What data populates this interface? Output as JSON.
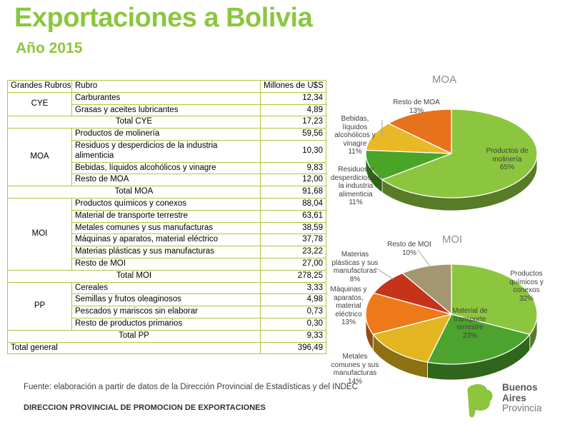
{
  "header": {
    "title": "Exportaciones a Bolivia",
    "subtitle": "Año 2015"
  },
  "colors": {
    "accent_green": "#8cc63e",
    "table_border": "#b2c53c",
    "chart_title_gray": "#8c8c8c"
  },
  "table": {
    "headers": [
      "Grandes Rubros",
      "Rubro",
      "Millones de U$S"
    ],
    "groups": [
      {
        "name": "CYE",
        "items": [
          [
            "Carburantes",
            "12,34"
          ],
          [
            "Grasas y aceites lubricantes",
            "4,89"
          ]
        ],
        "total_label": "Total CYE",
        "total": "17,23"
      },
      {
        "name": "MOA",
        "items": [
          [
            "Productos de molinería",
            "59,56"
          ],
          [
            "Residuos y desperdicios de la industria alimenticia",
            "10,30"
          ],
          [
            "Bebidas, líquidos alcohólicos y vinagre",
            "9,83"
          ],
          [
            "Resto de MOA",
            "12,00"
          ]
        ],
        "total_label": "Total MOA",
        "total": "91,68"
      },
      {
        "name": "MOI",
        "items": [
          [
            "Productos químicos y conexos",
            "88,04"
          ],
          [
            "Material de transporte terrestre",
            "63,61"
          ],
          [
            "Metales comunes y sus manufacturas",
            "38,59"
          ],
          [
            "Máquinas y aparatos, material eléctrico",
            "37,78"
          ],
          [
            "Materias plásticas y sus manufacturas",
            "23,22"
          ],
          [
            "Resto de MOI",
            "27,00"
          ]
        ],
        "total_label": "Total MOI",
        "total": "278,25"
      },
      {
        "name": "PP",
        "items": [
          [
            "Cereales",
            "3,33"
          ],
          [
            "Semillas y frutos oleaginosos",
            "4,98"
          ],
          [
            "Pescados y mariscos sin elaborar",
            "0,73"
          ],
          [
            "Resto de productos primarios",
            "0,30"
          ]
        ],
        "total_label": "Total PP",
        "total": "9,33"
      }
    ],
    "grand_total_label": "Total general",
    "grand_total": "396,49"
  },
  "chart_data": [
    {
      "type": "pie",
      "title": "MOA",
      "unit": "Millones de U$S",
      "slices": [
        {
          "label": "Productos de molinería",
          "label_lines": [
            "Productos de",
            "molinería"
          ],
          "value": 59.56,
          "pct": "65%",
          "color": "#8cc63e"
        },
        {
          "label": "Residuos y desperdicios de la industria alimenticia",
          "label_lines": [
            "Residuos y",
            "desperdicios de",
            "la industria",
            "alimenticia"
          ],
          "value": 10.3,
          "pct": "11%",
          "color": "#4aa427"
        },
        {
          "label": "Bebidas, líquidos alcohólicos y vinagre",
          "label_lines": [
            "Bebidas,",
            "líquidos",
            "alcohólicos y",
            "vinagre"
          ],
          "value": 9.83,
          "pct": "11%",
          "color": "#e9b925"
        },
        {
          "label": "Resto de MOA",
          "label_lines": [
            "Resto de MOA"
          ],
          "value": 12.0,
          "pct": "13%",
          "color": "#e8711c"
        }
      ]
    },
    {
      "type": "pie",
      "title": "MOI",
      "unit": "Millones de U$S",
      "slices": [
        {
          "label": "Productos químicos y conexos",
          "label_lines": [
            "Productos",
            "químicos y",
            "conexos"
          ],
          "value": 88.04,
          "pct": "32%",
          "color": "#8cc63e"
        },
        {
          "label": "Material de transporte terrestre",
          "label_lines": [
            "Material de",
            "transporte",
            "terrestre"
          ],
          "value": 63.61,
          "pct": "23%",
          "color": "#4ca32d"
        },
        {
          "label": "Metales comunes y sus manufacturas",
          "label_lines": [
            "Metales",
            "comunes y sus",
            "manufacturas"
          ],
          "value": 38.59,
          "pct": "14%",
          "color": "#e2b521"
        },
        {
          "label": "Máquinas y aparatos, material eléctrico",
          "label_lines": [
            "Máquinas y",
            "aparatos,",
            "material",
            "eléctrico"
          ],
          "value": 37.78,
          "pct": "13%",
          "color": "#ee7918"
        },
        {
          "label": "Materias plásticas y sus manufacturas",
          "label_lines": [
            "Materias",
            "plásticas y sus",
            "manufacturas"
          ],
          "value": 23.22,
          "pct": "8%",
          "color": "#c5331a"
        },
        {
          "label": "Resto de MOI",
          "label_lines": [
            "Resto de MOI"
          ],
          "value": 27.0,
          "pct": "10%",
          "color": "#a39670"
        }
      ]
    }
  ],
  "footer": {
    "source": "Fuente: elaboración a partir de datos de la Dirección Provincial de Estadísticas y del INDEC",
    "department": "DIRECCION PROVINCIAL DE PROMOCION DE EXPORTACIONES"
  },
  "logo": {
    "line1": "Buenos",
    "line2": "Aires",
    "line3": "Provincia"
  }
}
